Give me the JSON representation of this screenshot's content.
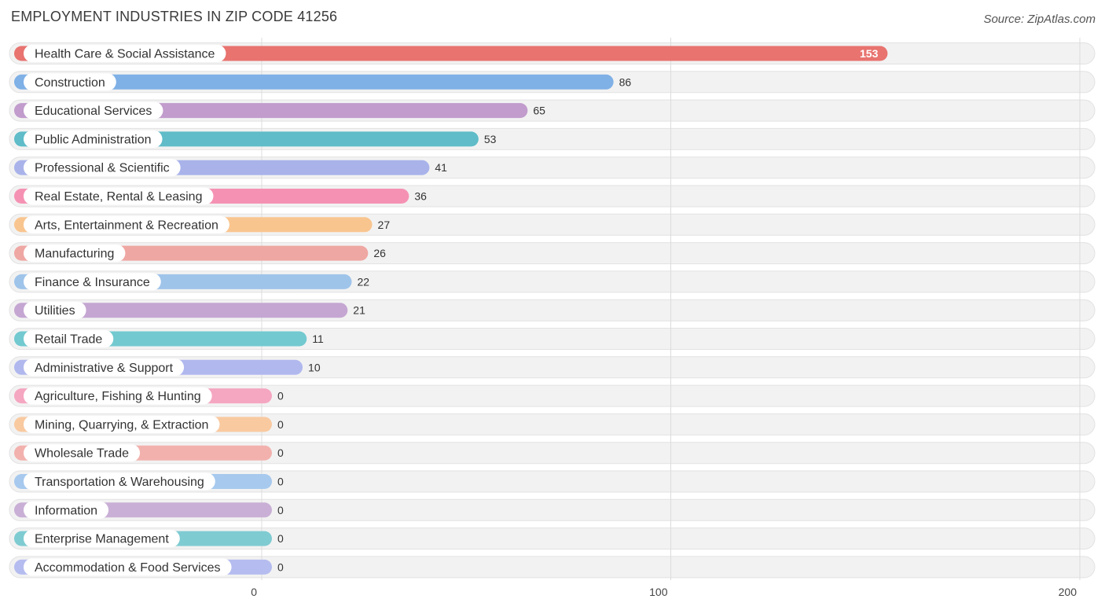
{
  "title": "EMPLOYMENT INDUSTRIES IN ZIP CODE 41256",
  "source": "Source: ZipAtlas.com",
  "chart_data": {
    "type": "bar",
    "orientation": "horizontal",
    "title": "EMPLOYMENT INDUSTRIES IN ZIP CODE 41256",
    "xlabel": "",
    "ylabel": "",
    "xlim": [
      0,
      200
    ],
    "xticks": [
      0,
      100,
      200
    ],
    "grid": true,
    "categories": [
      "Health Care & Social Assistance",
      "Construction",
      "Educational Services",
      "Public Administration",
      "Professional & Scientific",
      "Real Estate, Rental & Leasing",
      "Arts, Entertainment & Recreation",
      "Manufacturing",
      "Finance & Insurance",
      "Utilities",
      "Retail Trade",
      "Administrative & Support",
      "Agriculture, Fishing & Hunting",
      "Mining, Quarrying, & Extraction",
      "Wholesale Trade",
      "Transportation & Warehousing",
      "Information",
      "Enterprise Management",
      "Accommodation & Food Services"
    ],
    "values": [
      153,
      86,
      65,
      53,
      41,
      36,
      27,
      26,
      22,
      21,
      11,
      10,
      0,
      0,
      0,
      0,
      0,
      0,
      0
    ],
    "colors": [
      "#e8736f",
      "#7fb0e6",
      "#c19ccc",
      "#5fbcc8",
      "#a9b3ea",
      "#f592b3",
      "#f9c58f",
      "#efa7a3",
      "#9fc4ea",
      "#c5a6d2",
      "#72c9d0",
      "#b0b8ee",
      "#f5a6c0",
      "#f9c9a0",
      "#f2b1ad",
      "#a7c9ee",
      "#c9afd6",
      "#7fcbd2",
      "#b5bcef"
    ]
  }
}
